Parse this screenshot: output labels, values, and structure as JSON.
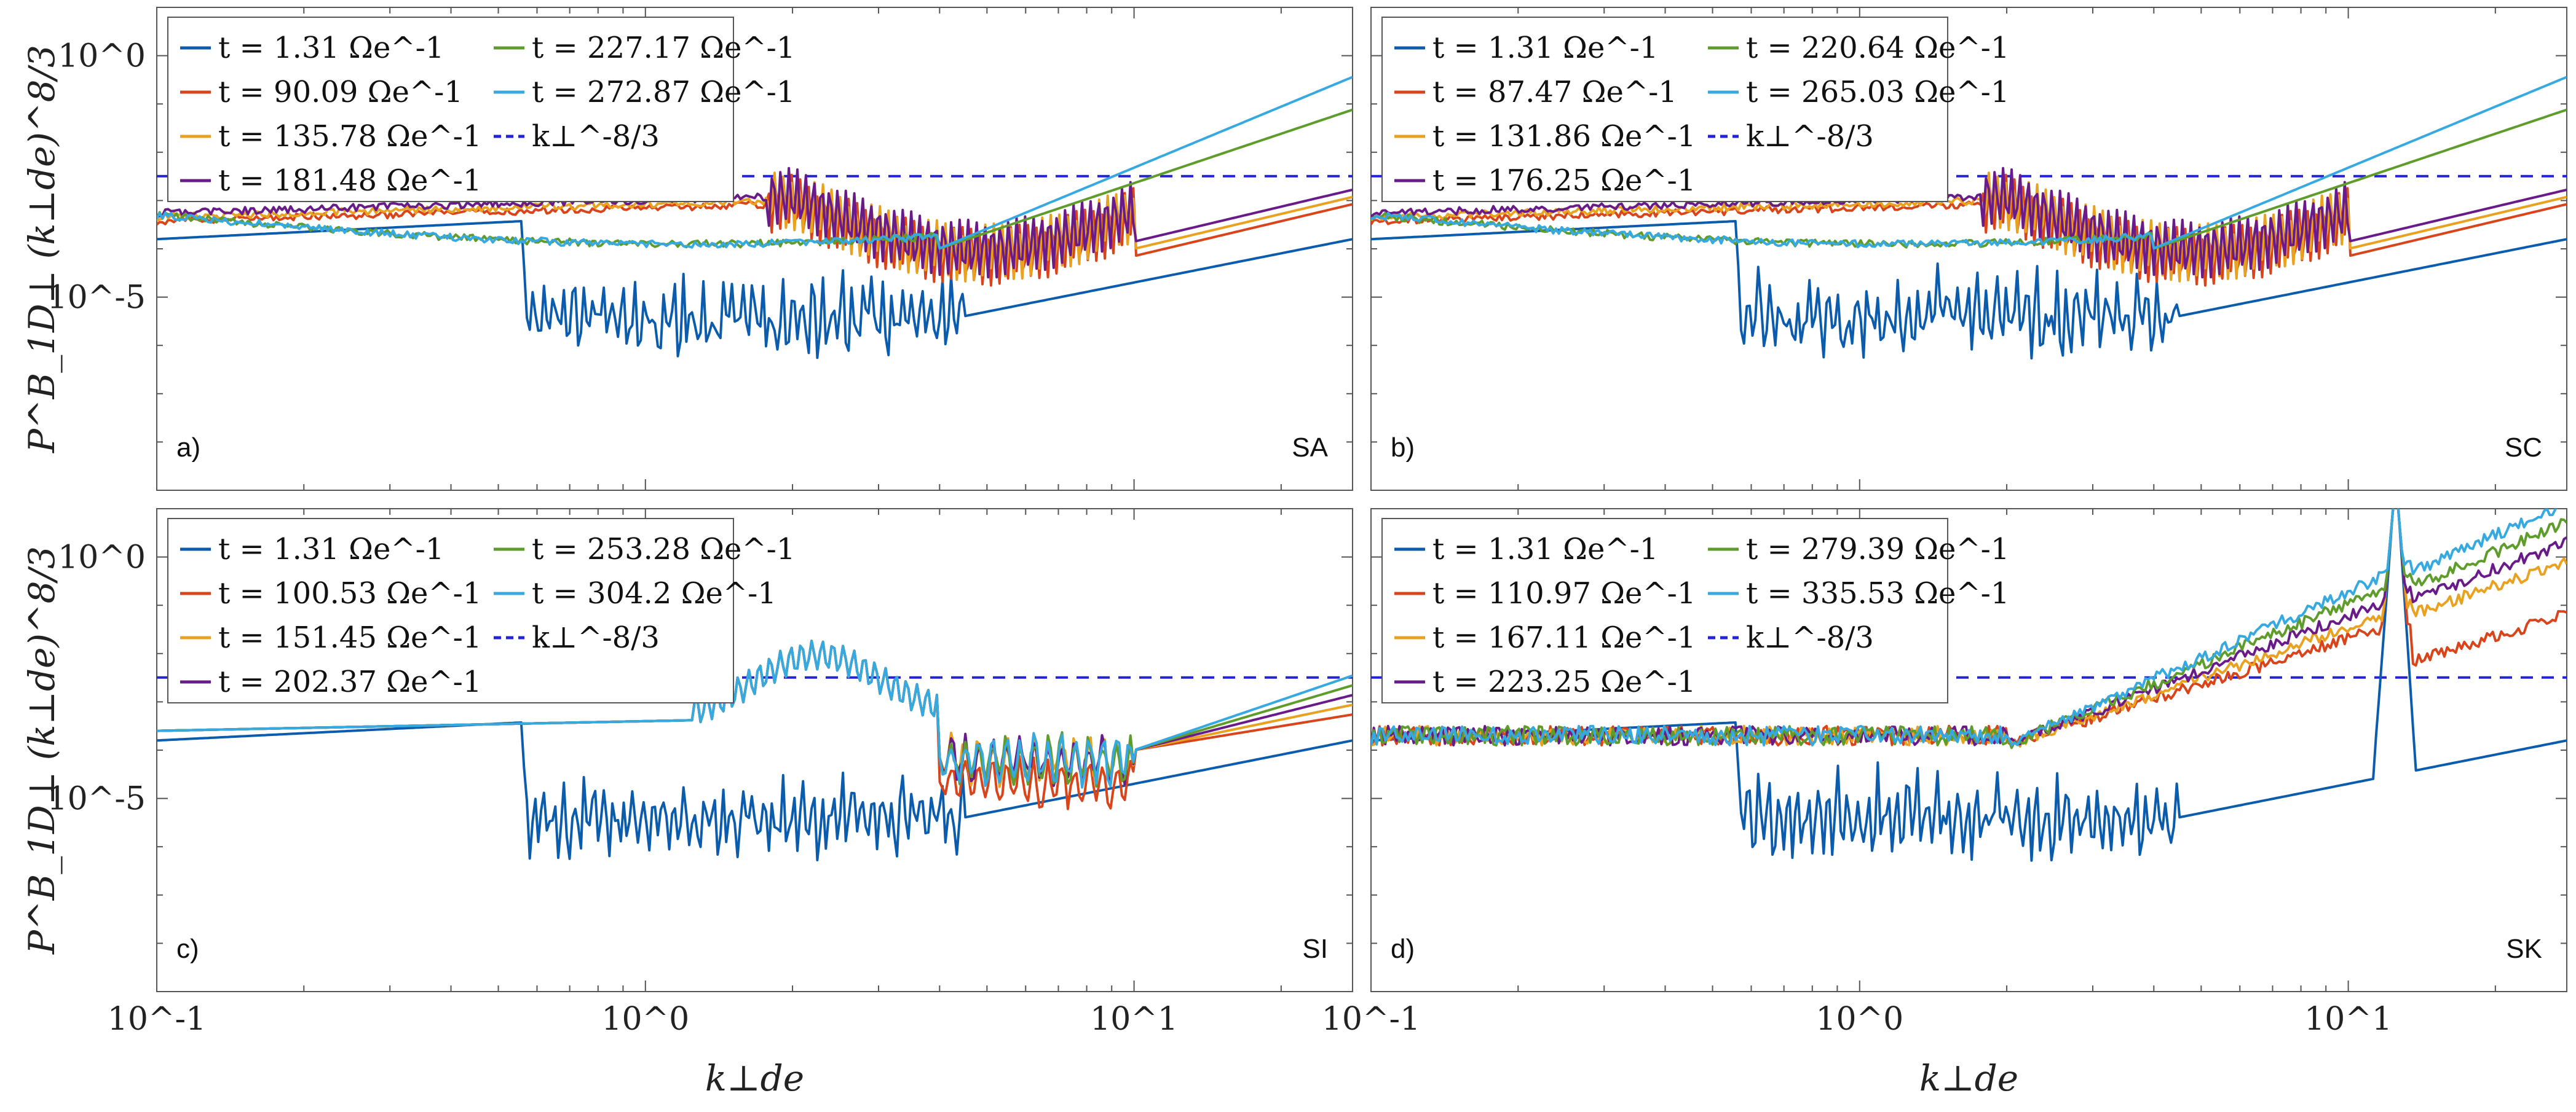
{
  "figure": {
    "xlabel": "k⊥de",
    "ylabel": "P^B_1D⊥ (k⊥de)^8/3",
    "x_tick_labels": [
      "10^-1",
      "10^0",
      "10^1"
    ],
    "y_tick_labels": [
      "10^0",
      "10^-5"
    ]
  },
  "chart_data": [
    {
      "type": "line",
      "panel": "a)",
      "case": "SA",
      "xscale": "log",
      "yscale": "log",
      "xlim": [
        0.1,
        28
      ],
      "ylim": [
        1e-09,
        10.0
      ],
      "reference": {
        "name": "k⊥^-8/3",
        "value": 0.0032
      },
      "series": [
        {
          "name": "t = 1.31 Ωe^-1",
          "color": "#0B5CAD",
          "base": "spiky"
        },
        {
          "name": "t = 90.09 Ωe^-1",
          "color": "#D9441A",
          "base": "osc"
        },
        {
          "name": "t = 135.78 Ωe^-1",
          "color": "#E8A21F",
          "base": "osc"
        },
        {
          "name": "t = 181.48 Ωe^-1",
          "color": "#6A1B8A",
          "base": "osc"
        },
        {
          "name": "t = 227.17 Ωe^-1",
          "color": "#5E9C2B",
          "base": "smooth"
        },
        {
          "name": "t = 272.87 Ωe^-1",
          "color": "#36A9E1",
          "base": "smooth"
        }
      ]
    },
    {
      "type": "line",
      "panel": "b)",
      "case": "SC",
      "xscale": "log",
      "yscale": "log",
      "xlim": [
        0.1,
        28
      ],
      "ylim": [
        1e-09,
        10.0
      ],
      "reference": {
        "name": "k⊥^-8/3",
        "value": 0.0032
      },
      "series": [
        {
          "name": "t = 1.31 Ωe^-1",
          "color": "#0B5CAD",
          "base": "spiky"
        },
        {
          "name": "t = 87.47 Ωe^-1",
          "color": "#D9441A",
          "base": "osc"
        },
        {
          "name": "t = 131.86 Ωe^-1",
          "color": "#E8A21F",
          "base": "osc"
        },
        {
          "name": "t = 176.25 Ωe^-1",
          "color": "#6A1B8A",
          "base": "osc"
        },
        {
          "name": "t = 220.64 Ωe^-1",
          "color": "#5E9C2B",
          "base": "smooth"
        },
        {
          "name": "t = 265.03 Ωe^-1",
          "color": "#36A9E1",
          "base": "smooth"
        }
      ]
    },
    {
      "type": "line",
      "panel": "c)",
      "case": "SI",
      "xscale": "log",
      "yscale": "log",
      "xlim": [
        0.1,
        28
      ],
      "ylim": [
        1e-09,
        10.0
      ],
      "reference": {
        "name": "k⊥^-8/3",
        "value": 0.0032
      },
      "series": [
        {
          "name": "t = 1.31 Ωe^-1",
          "color": "#0B5CAD",
          "base": "spiky"
        },
        {
          "name": "t = 100.53 Ωe^-1",
          "color": "#D9441A",
          "base": "bump"
        },
        {
          "name": "t = 151.45 Ωe^-1",
          "color": "#E8A21F",
          "base": "bump"
        },
        {
          "name": "t = 202.37 Ωe^-1",
          "color": "#6A1B8A",
          "base": "bump"
        },
        {
          "name": "t = 253.28 Ωe^-1",
          "color": "#5E9C2B",
          "base": "bump"
        },
        {
          "name": "t = 304.2 Ωe^-1",
          "color": "#36A9E1",
          "base": "bump"
        }
      ]
    },
    {
      "type": "line",
      "panel": "d)",
      "case": "SK",
      "xscale": "log",
      "yscale": "log",
      "xlim": [
        0.1,
        28
      ],
      "ylim": [
        1e-09,
        10.0
      ],
      "reference": {
        "name": "k⊥^-8/3",
        "value": 0.0032
      },
      "series": [
        {
          "name": "t = 1.31 Ωe^-1",
          "color": "#0B5CAD",
          "base": "spiky"
        },
        {
          "name": "t = 110.97 Ωe^-1",
          "color": "#D9441A",
          "base": "rise"
        },
        {
          "name": "t = 167.11 Ωe^-1",
          "color": "#E8A21F",
          "base": "rise"
        },
        {
          "name": "t = 223.25 Ωe^-1",
          "color": "#6A1B8A",
          "base": "rise"
        },
        {
          "name": "t = 279.39 Ωe^-1",
          "color": "#5E9C2B",
          "base": "rise"
        },
        {
          "name": "t = 335.53 Ωe^-1",
          "color": "#36A9E1",
          "base": "rise"
        }
      ]
    }
  ]
}
